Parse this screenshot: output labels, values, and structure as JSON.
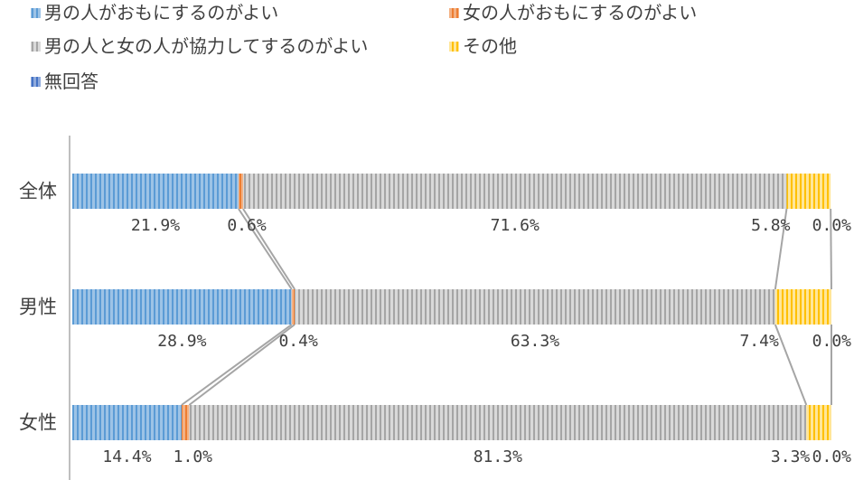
{
  "chart_data": {
    "type": "bar",
    "orientation": "horizontal",
    "stacked": "percent",
    "categories": [
      "全体",
      "男性",
      "女性"
    ],
    "series": [
      {
        "name": "男の人がおもにするのがよい",
        "values": [
          21.9,
          28.9,
          14.4
        ],
        "labels": [
          "21.9%",
          "28.9%",
          "14.4%"
        ],
        "color": "#5B9BD5"
      },
      {
        "name": "女の人がおもにするのがよい",
        "values": [
          0.6,
          0.4,
          1.0
        ],
        "labels": [
          "0.6%",
          "0.4%",
          "1.0%"
        ],
        "color": "#ED7D31"
      },
      {
        "name": "男の人と女の人が協力してするのがよい",
        "values": [
          71.6,
          63.3,
          81.3
        ],
        "labels": [
          "71.6%",
          "63.3%",
          "81.3%"
        ],
        "color": "#A5A5A5"
      },
      {
        "name": "その他",
        "values": [
          5.8,
          7.4,
          3.3
        ],
        "labels": [
          "5.8%",
          "7.4%",
          "3.3%"
        ],
        "color": "#FFC000"
      },
      {
        "name": "無回答",
        "values": [
          0.0,
          0.0,
          0.0
        ],
        "labels": [
          "0.0%",
          "0.0%",
          "0.0%"
        ],
        "color": "#4472C4"
      }
    ],
    "legend_position": "top",
    "series_lines": true,
    "xlim": [
      0,
      100
    ]
  }
}
